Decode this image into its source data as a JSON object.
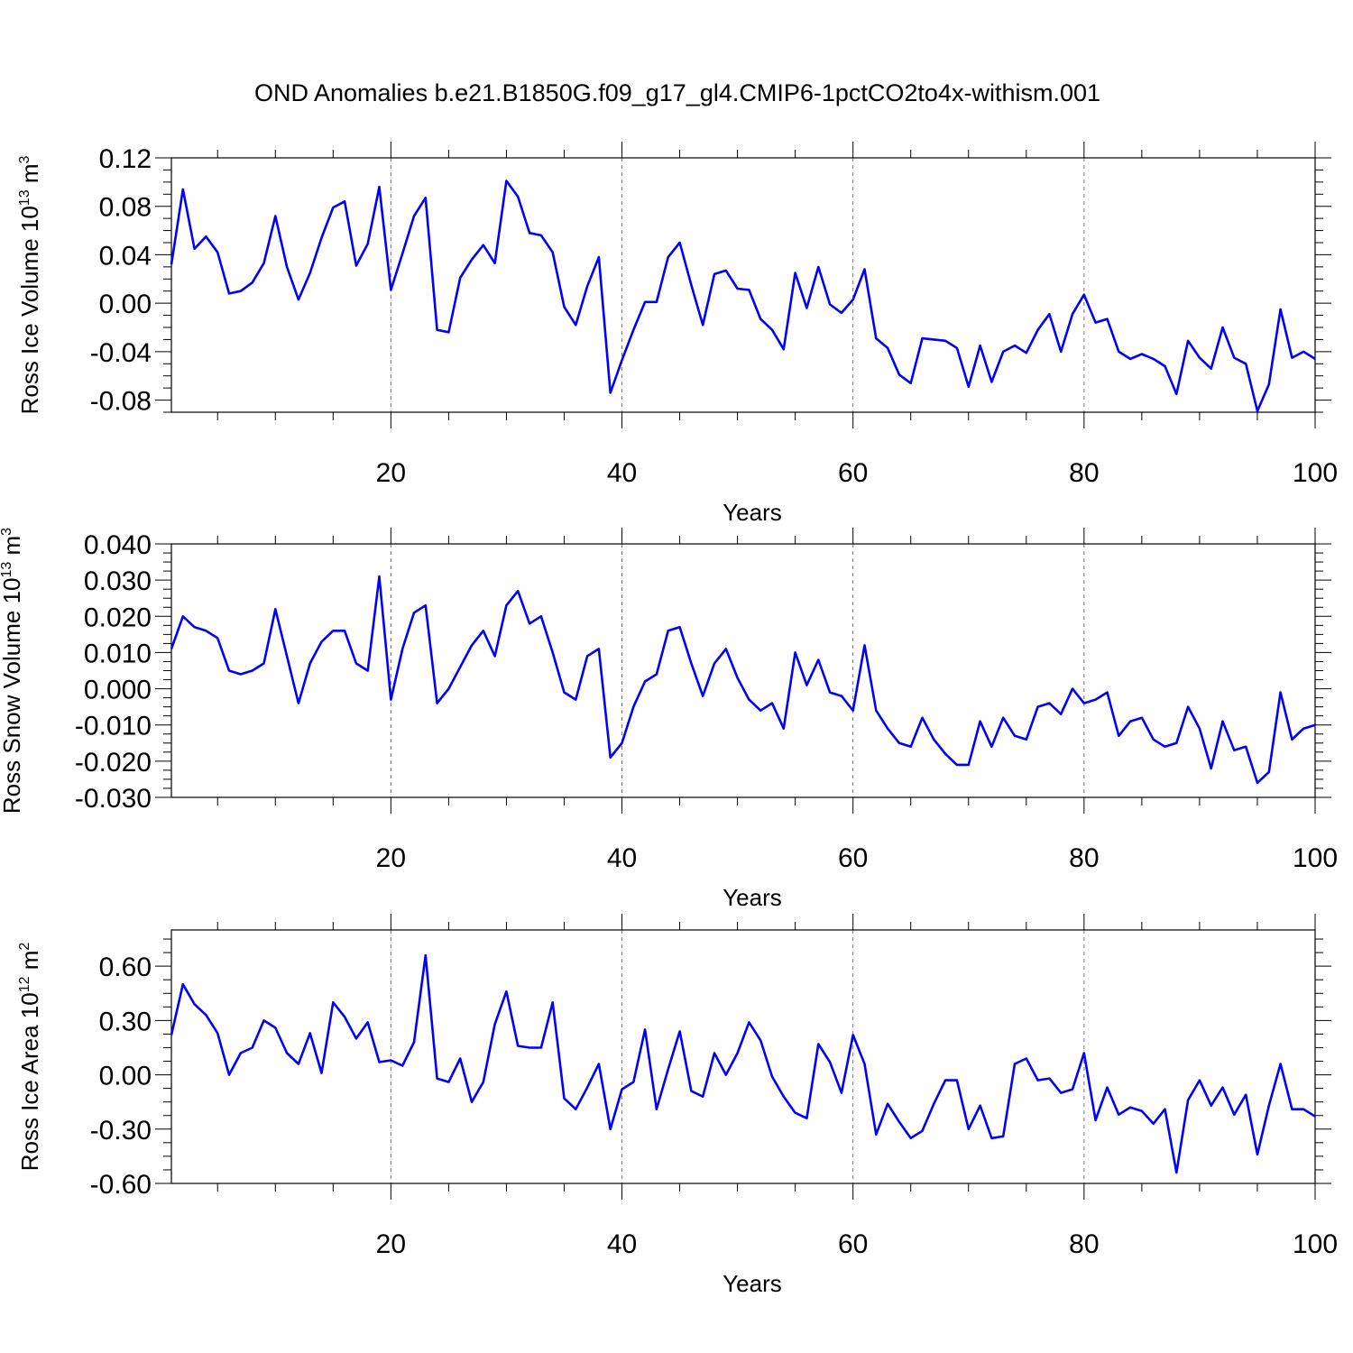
{
  "title": "OND Anomalies b.e21.B1850G.f09_g17_gl4.CMIP6-1pctCO2to4x-withism.001",
  "colors": {
    "line": "#0000ff",
    "frame": "#000000",
    "grid": "#777777"
  },
  "chart_data": [
    {
      "type": "line",
      "ylabel": "Ross Ice Volume 10",
      "ylabel_exp": "13",
      "ylabel_unit": " m",
      "ylabel_unit_exp": "3",
      "xlabel": "Years",
      "xlim": [
        1,
        100
      ],
      "ylim": [
        -0.09,
        0.12
      ],
      "yticks": [
        0.12,
        0.08,
        0.04,
        0.0,
        -0.04,
        -0.08
      ],
      "ytick_labels": [
        "0.12",
        "0.08",
        "0.04",
        "0.00",
        "-0.04",
        "-0.08"
      ],
      "xticks": [
        20,
        40,
        60,
        80,
        100
      ],
      "xtick_labels": [
        "20",
        "40",
        "60",
        "80",
        "100"
      ],
      "grid_x": true,
      "x": [
        1,
        2,
        3,
        4,
        5,
        6,
        7,
        8,
        9,
        10,
        11,
        12,
        13,
        14,
        15,
        16,
        17,
        18,
        19,
        20,
        21,
        22,
        23,
        24,
        25,
        26,
        27,
        28,
        29,
        30,
        31,
        32,
        33,
        34,
        35,
        36,
        37,
        38,
        39,
        40,
        41,
        42,
        43,
        44,
        45,
        46,
        47,
        48,
        49,
        50,
        51,
        52,
        53,
        54,
        55,
        56,
        57,
        58,
        59,
        60,
        61,
        62,
        63,
        64,
        65,
        66,
        67,
        68,
        69,
        70,
        71,
        72,
        73,
        74,
        75,
        76,
        77,
        78,
        79,
        80,
        81,
        82,
        83,
        84,
        85,
        86,
        87,
        88,
        89,
        90,
        91,
        92,
        93,
        94,
        95,
        96,
        97,
        98,
        99,
        100
      ],
      "values": [
        0.032,
        0.094,
        0.045,
        0.055,
        0.042,
        0.008,
        0.01,
        0.017,
        0.033,
        0.072,
        0.03,
        0.003,
        0.025,
        0.054,
        0.079,
        0.084,
        0.031,
        0.049,
        0.096,
        0.011,
        0.041,
        0.072,
        0.087,
        -0.022,
        -0.024,
        0.021,
        0.036,
        0.048,
        0.033,
        0.101,
        0.088,
        0.058,
        0.056,
        0.042,
        -0.003,
        -0.018,
        0.014,
        0.038,
        -0.074,
        -0.047,
        -0.022,
        0.001,
        0.001,
        0.038,
        0.05,
        0.015,
        -0.018,
        0.024,
        0.027,
        0.012,
        0.011,
        -0.013,
        -0.022,
        -0.038,
        0.025,
        -0.004,
        0.03,
        -0.001,
        -0.008,
        0.003,
        0.028,
        -0.029,
        -0.037,
        -0.059,
        -0.066,
        -0.029,
        -0.03,
        -0.031,
        -0.037,
        -0.069,
        -0.035,
        -0.065,
        -0.04,
        -0.035,
        -0.041,
        -0.022,
        -0.009,
        -0.04,
        -0.009,
        0.007,
        -0.016,
        -0.013,
        -0.04,
        -0.046,
        -0.042,
        -0.046,
        -0.052,
        -0.075,
        -0.031,
        -0.045,
        -0.054,
        -0.02,
        -0.045,
        -0.05,
        -0.089,
        -0.067,
        -0.005,
        -0.045,
        -0.04,
        -0.046
      ]
    },
    {
      "type": "line",
      "ylabel": "Ross Snow Volume 10",
      "ylabel_exp": "13",
      "ylabel_unit": " m",
      "ylabel_unit_exp": "3",
      "xlabel": "Years",
      "xlim": [
        1,
        100
      ],
      "ylim": [
        -0.03,
        0.04
      ],
      "yticks": [
        0.04,
        0.03,
        0.02,
        0.01,
        0.0,
        -0.01,
        -0.02,
        -0.03
      ],
      "ytick_labels": [
        "0.040",
        "0.030",
        "0.020",
        "0.010",
        "0.000",
        "-0.010",
        "-0.020",
        "-0.030"
      ],
      "xticks": [
        20,
        40,
        60,
        80,
        100
      ],
      "xtick_labels": [
        "20",
        "40",
        "60",
        "80",
        "100"
      ],
      "grid_x": true,
      "x": [
        1,
        2,
        3,
        4,
        5,
        6,
        7,
        8,
        9,
        10,
        11,
        12,
        13,
        14,
        15,
        16,
        17,
        18,
        19,
        20,
        21,
        22,
        23,
        24,
        25,
        26,
        27,
        28,
        29,
        30,
        31,
        32,
        33,
        34,
        35,
        36,
        37,
        38,
        39,
        40,
        41,
        42,
        43,
        44,
        45,
        46,
        47,
        48,
        49,
        50,
        51,
        52,
        53,
        54,
        55,
        56,
        57,
        58,
        59,
        60,
        61,
        62,
        63,
        64,
        65,
        66,
        67,
        68,
        69,
        70,
        71,
        72,
        73,
        74,
        75,
        76,
        77,
        78,
        79,
        80,
        81,
        82,
        83,
        84,
        85,
        86,
        87,
        88,
        89,
        90,
        91,
        92,
        93,
        94,
        95,
        96,
        97,
        98,
        99,
        100
      ],
      "values": [
        0.011,
        0.02,
        0.017,
        0.016,
        0.014,
        0.005,
        0.004,
        0.005,
        0.007,
        0.022,
        0.009,
        -0.004,
        0.007,
        0.013,
        0.016,
        0.016,
        0.007,
        0.005,
        0.031,
        -0.003,
        0.011,
        0.021,
        0.023,
        -0.004,
        0.0,
        0.006,
        0.012,
        0.016,
        0.009,
        0.023,
        0.027,
        0.018,
        0.02,
        0.01,
        -0.001,
        -0.003,
        0.009,
        0.011,
        -0.019,
        -0.015,
        -0.005,
        0.002,
        0.004,
        0.016,
        0.017,
        0.007,
        -0.002,
        0.007,
        0.011,
        0.003,
        -0.003,
        -0.006,
        -0.004,
        -0.011,
        0.01,
        0.001,
        0.008,
        -0.001,
        -0.002,
        -0.006,
        0.012,
        -0.006,
        -0.011,
        -0.015,
        -0.016,
        -0.008,
        -0.014,
        -0.018,
        -0.021,
        -0.021,
        -0.009,
        -0.016,
        -0.008,
        -0.013,
        -0.014,
        -0.005,
        -0.004,
        -0.007,
        0.0,
        -0.004,
        -0.003,
        -0.001,
        -0.013,
        -0.009,
        -0.008,
        -0.014,
        -0.016,
        -0.015,
        -0.005,
        -0.011,
        -0.022,
        -0.009,
        -0.017,
        -0.016,
        -0.026,
        -0.023,
        -0.001,
        -0.014,
        -0.011,
        -0.01
      ]
    },
    {
      "type": "line",
      "ylabel": "Ross Ice Area 10",
      "ylabel_exp": "12",
      "ylabel_unit": " m",
      "ylabel_unit_exp": "2",
      "xlabel": "Years",
      "xlim": [
        1,
        100
      ],
      "ylim": [
        -0.6,
        0.8
      ],
      "yticks": [
        0.6,
        0.3,
        0.0,
        -0.3,
        -0.6
      ],
      "ytick_labels": [
        "0.60",
        "0.30",
        "0.00",
        "-0.30",
        "-0.60"
      ],
      "xticks": [
        20,
        40,
        60,
        80,
        100
      ],
      "xtick_labels": [
        "20",
        "40",
        "60",
        "80",
        "100"
      ],
      "grid_x": true,
      "x": [
        1,
        2,
        3,
        4,
        5,
        6,
        7,
        8,
        9,
        10,
        11,
        12,
        13,
        14,
        15,
        16,
        17,
        18,
        19,
        20,
        21,
        22,
        23,
        24,
        25,
        26,
        27,
        28,
        29,
        30,
        31,
        32,
        33,
        34,
        35,
        36,
        37,
        38,
        39,
        40,
        41,
        42,
        43,
        44,
        45,
        46,
        47,
        48,
        49,
        50,
        51,
        52,
        53,
        54,
        55,
        56,
        57,
        58,
        59,
        60,
        61,
        62,
        63,
        64,
        65,
        66,
        67,
        68,
        69,
        70,
        71,
        72,
        73,
        74,
        75,
        76,
        77,
        78,
        79,
        80,
        81,
        82,
        83,
        84,
        85,
        86,
        87,
        88,
        89,
        90,
        91,
        92,
        93,
        94,
        95,
        96,
        97,
        98,
        99,
        100
      ],
      "values": [
        0.22,
        0.5,
        0.39,
        0.33,
        0.23,
        0.0,
        0.12,
        0.15,
        0.3,
        0.26,
        0.12,
        0.06,
        0.23,
        0.01,
        0.4,
        0.32,
        0.2,
        0.29,
        0.07,
        0.08,
        0.05,
        0.18,
        0.66,
        -0.02,
        -0.04,
        0.09,
        -0.15,
        -0.04,
        0.28,
        0.46,
        0.16,
        0.15,
        0.15,
        0.4,
        -0.13,
        -0.19,
        -0.07,
        0.06,
        -0.3,
        -0.08,
        -0.04,
        0.25,
        -0.19,
        0.03,
        0.24,
        -0.09,
        -0.12,
        0.12,
        0.0,
        0.12,
        0.29,
        0.19,
        -0.01,
        -0.12,
        -0.21,
        -0.24,
        0.17,
        0.07,
        -0.1,
        0.22,
        0.06,
        -0.33,
        -0.16,
        -0.26,
        -0.35,
        -0.31,
        -0.16,
        -0.03,
        -0.03,
        -0.3,
        -0.17,
        -0.35,
        -0.34,
        0.06,
        0.09,
        -0.03,
        -0.02,
        -0.1,
        -0.08,
        0.12,
        -0.25,
        -0.07,
        -0.22,
        -0.18,
        -0.2,
        -0.27,
        -0.19,
        -0.54,
        -0.14,
        -0.03,
        -0.17,
        -0.07,
        -0.22,
        -0.11,
        -0.44,
        -0.17,
        0.06,
        -0.19,
        -0.19,
        -0.23
      ]
    }
  ]
}
